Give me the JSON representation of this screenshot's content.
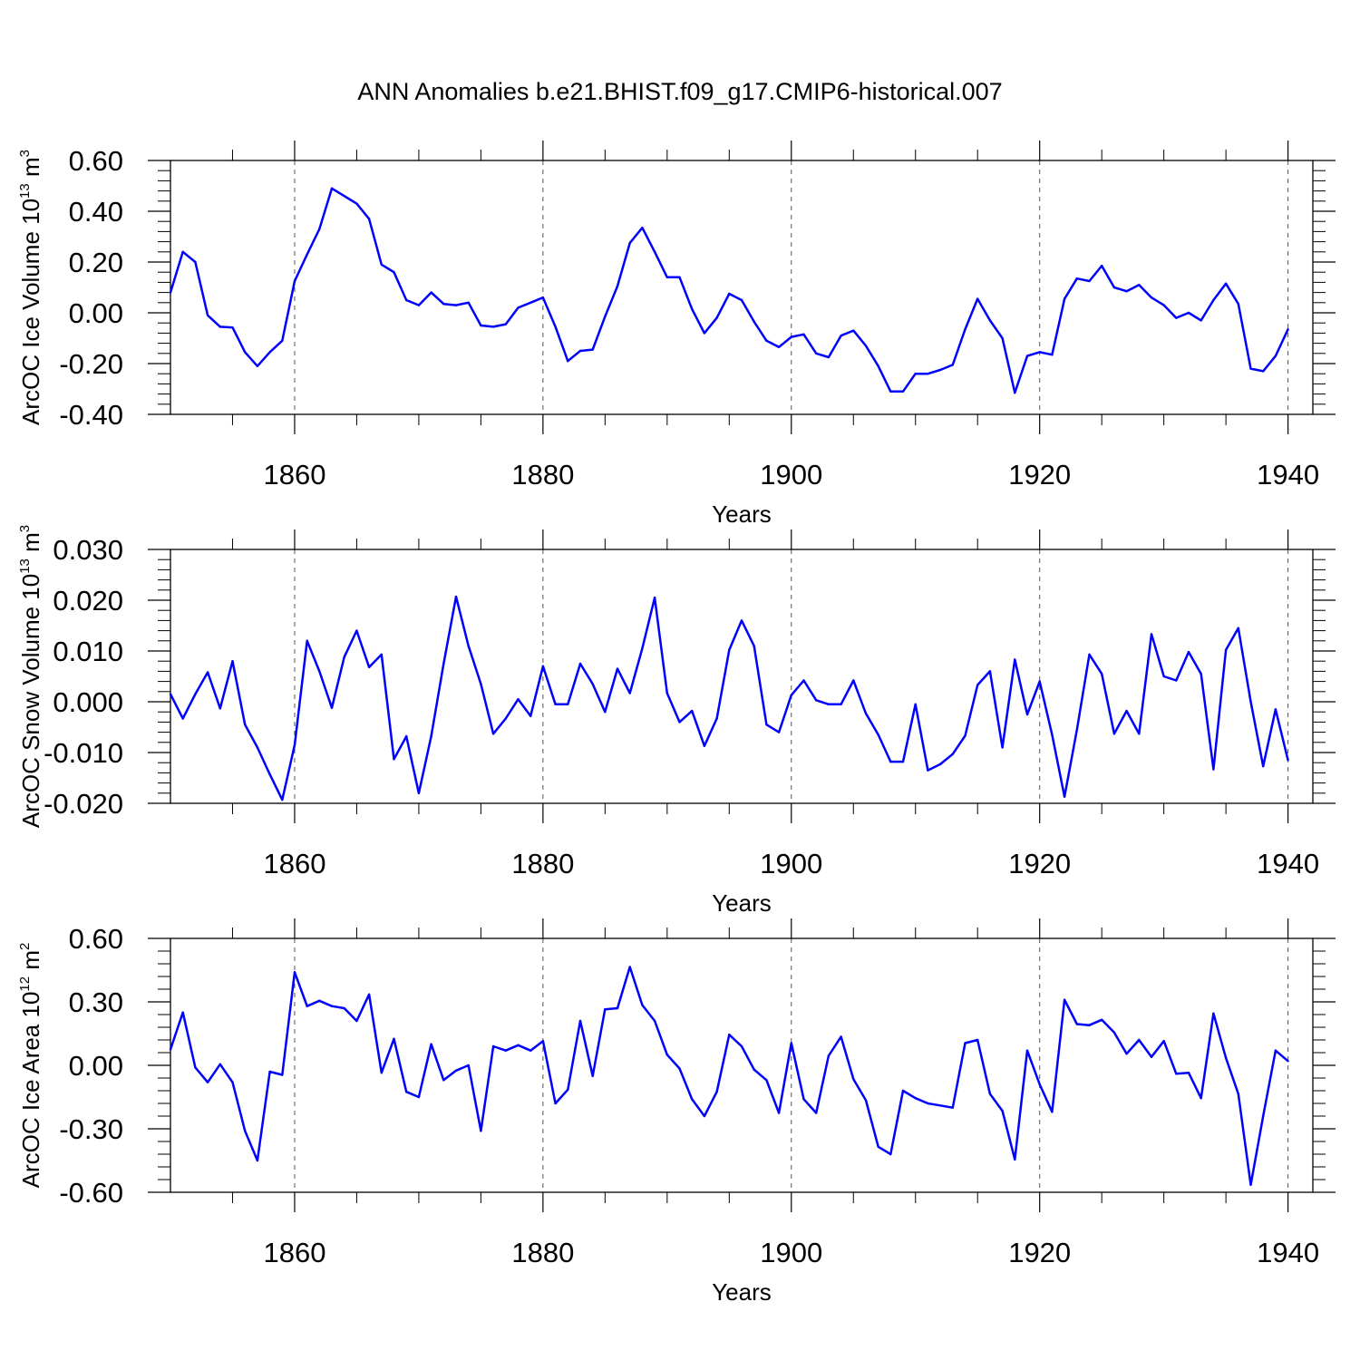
{
  "title": "ANN Anomalies b.e21.BHIST.f09_g17.CMIP6-historical.007",
  "colors": {
    "line": "#0000ff",
    "axis": "#000000",
    "grid": "#555555"
  },
  "chart_data": [
    {
      "type": "line",
      "name": "ice-volume",
      "ylabel": {
        "main": "ArcOC Ice Volume 10",
        "exp": "13",
        "unit": " m",
        "unit_exp": "3"
      },
      "xlabel": "Years",
      "xlim": [
        1850,
        1942
      ],
      "ylim": [
        -0.4,
        0.6
      ],
      "yticks": [
        -0.4,
        -0.2,
        0.0,
        0.2,
        0.4,
        0.6
      ],
      "ytick_labels": [
        "-0.40",
        "-0.20",
        "0.00",
        "0.20",
        "0.40",
        "0.60"
      ],
      "xticks": [
        1860,
        1880,
        1900,
        1920,
        1940
      ],
      "xtick_labels": [
        "1860",
        "1880",
        "1900",
        "1920",
        "1940"
      ],
      "x_start": 1850,
      "values": [
        0.08,
        0.24,
        0.2,
        -0.01,
        -0.055,
        -0.058,
        -0.155,
        -0.21,
        -0.155,
        -0.11,
        0.125,
        0.23,
        0.33,
        0.49,
        0.46,
        0.43,
        0.37,
        0.19,
        0.16,
        0.05,
        0.03,
        0.08,
        0.035,
        0.03,
        0.04,
        -0.05,
        -0.055,
        -0.045,
        0.02,
        0.04,
        0.06,
        -0.055,
        -0.19,
        -0.15,
        -0.145,
        -0.015,
        0.105,
        0.275,
        0.335,
        0.24,
        0.14,
        0.14,
        0.015,
        -0.08,
        -0.02,
        0.075,
        0.05,
        -0.035,
        -0.11,
        -0.135,
        -0.095,
        -0.085,
        -0.16,
        -0.175,
        -0.09,
        -0.07,
        -0.13,
        -0.21,
        -0.31,
        -0.31,
        -0.24,
        -0.24,
        -0.225,
        -0.205,
        -0.065,
        0.055,
        -0.03,
        -0.1,
        -0.315,
        -0.17,
        -0.155,
        -0.165,
        0.055,
        0.135,
        0.125,
        0.185,
        0.1,
        0.085,
        0.11,
        0.06,
        0.03,
        -0.02,
        0.0,
        -0.03,
        0.05,
        0.115,
        0.035,
        -0.22,
        -0.23,
        -0.17,
        -0.065
      ]
    },
    {
      "type": "line",
      "name": "snow-volume",
      "ylabel": {
        "main": "ArcOC Snow Volume 10",
        "exp": "13",
        "unit": " m",
        "unit_exp": "3"
      },
      "xlabel": "Years",
      "xlim": [
        1850,
        1942
      ],
      "ylim": [
        -0.02,
        0.03
      ],
      "yticks": [
        -0.02,
        -0.01,
        0.0,
        0.01,
        0.02,
        0.03
      ],
      "ytick_labels": [
        "-0.020",
        "-0.010",
        "0.000",
        "0.010",
        "0.020",
        "0.030"
      ],
      "xticks": [
        1860,
        1880,
        1900,
        1920,
        1940
      ],
      "xtick_labels": [
        "1860",
        "1880",
        "1900",
        "1920",
        "1940"
      ],
      "x_start": 1850,
      "values": [
        0.0015,
        -0.0033,
        0.0015,
        0.0058,
        -0.0013,
        0.008,
        -0.0045,
        -0.009,
        -0.0143,
        -0.0193,
        -0.0085,
        0.012,
        0.006,
        -0.0012,
        0.0088,
        0.014,
        0.0068,
        0.0093,
        -0.0113,
        -0.0068,
        -0.018,
        -0.0068,
        0.0075,
        0.0207,
        0.011,
        0.0035,
        -0.0063,
        -0.0033,
        0.0005,
        -0.0028,
        0.007,
        -0.0005,
        -0.0005,
        0.0075,
        0.0035,
        -0.002,
        0.0065,
        0.0017,
        0.0105,
        0.0205,
        0.0017,
        -0.004,
        -0.0018,
        -0.0087,
        -0.0033,
        0.0102,
        0.016,
        0.011,
        -0.0045,
        -0.006,
        0.0013,
        0.0042,
        0.0003,
        -0.0005,
        -0.0005,
        0.0042,
        -0.0023,
        -0.0065,
        -0.0118,
        -0.0118,
        -0.0005,
        -0.0135,
        -0.0123,
        -0.0103,
        -0.0067,
        0.0033,
        0.006,
        -0.009,
        0.0083,
        -0.0025,
        0.004,
        -0.0065,
        -0.0187,
        -0.0055,
        0.0093,
        0.0055,
        -0.0063,
        -0.0018,
        -0.0063,
        0.0133,
        0.005,
        0.0042,
        0.0098,
        0.0055,
        -0.0133,
        0.0102,
        0.0145,
        0.0,
        -0.0127,
        -0.0015,
        -0.0115
      ]
    },
    {
      "type": "line",
      "name": "ice-area",
      "ylabel": {
        "main": "ArcOC Ice Area 10",
        "exp": "12",
        "unit": " m",
        "unit_exp": "2"
      },
      "xlabel": "Years",
      "xlim": [
        1850,
        1942
      ],
      "ylim": [
        -0.6,
        0.6
      ],
      "yticks": [
        -0.6,
        -0.3,
        0.0,
        0.3,
        0.6
      ],
      "ytick_labels": [
        "-0.60",
        "-0.30",
        "0.00",
        "0.30",
        "0.60"
      ],
      "xticks": [
        1860,
        1880,
        1900,
        1920,
        1940
      ],
      "xtick_labels": [
        "1860",
        "1880",
        "1900",
        "1920",
        "1940"
      ],
      "x_start": 1850,
      "values": [
        0.075,
        0.25,
        -0.01,
        -0.08,
        0.005,
        -0.08,
        -0.31,
        -0.45,
        -0.03,
        -0.045,
        0.44,
        0.28,
        0.305,
        0.28,
        0.27,
        0.21,
        0.335,
        -0.035,
        0.125,
        -0.125,
        -0.15,
        0.1,
        -0.07,
        -0.025,
        0.0,
        -0.31,
        0.09,
        0.07,
        0.095,
        0.07,
        0.115,
        -0.18,
        -0.115,
        0.21,
        -0.05,
        0.265,
        0.27,
        0.465,
        0.285,
        0.21,
        0.05,
        -0.015,
        -0.16,
        -0.24,
        -0.125,
        0.145,
        0.09,
        -0.02,
        -0.07,
        -0.225,
        0.105,
        -0.16,
        -0.225,
        0.045,
        0.135,
        -0.065,
        -0.165,
        -0.385,
        -0.42,
        -0.12,
        -0.155,
        -0.18,
        -0.19,
        -0.2,
        0.105,
        0.12,
        -0.135,
        -0.215,
        -0.445,
        0.07,
        -0.09,
        -0.22,
        0.31,
        0.195,
        0.19,
        0.215,
        0.155,
        0.055,
        0.12,
        0.04,
        0.115,
        -0.04,
        -0.035,
        -0.155,
        0.245,
        0.035,
        -0.135,
        -0.565,
        -0.24,
        0.07,
        0.02
      ]
    }
  ]
}
